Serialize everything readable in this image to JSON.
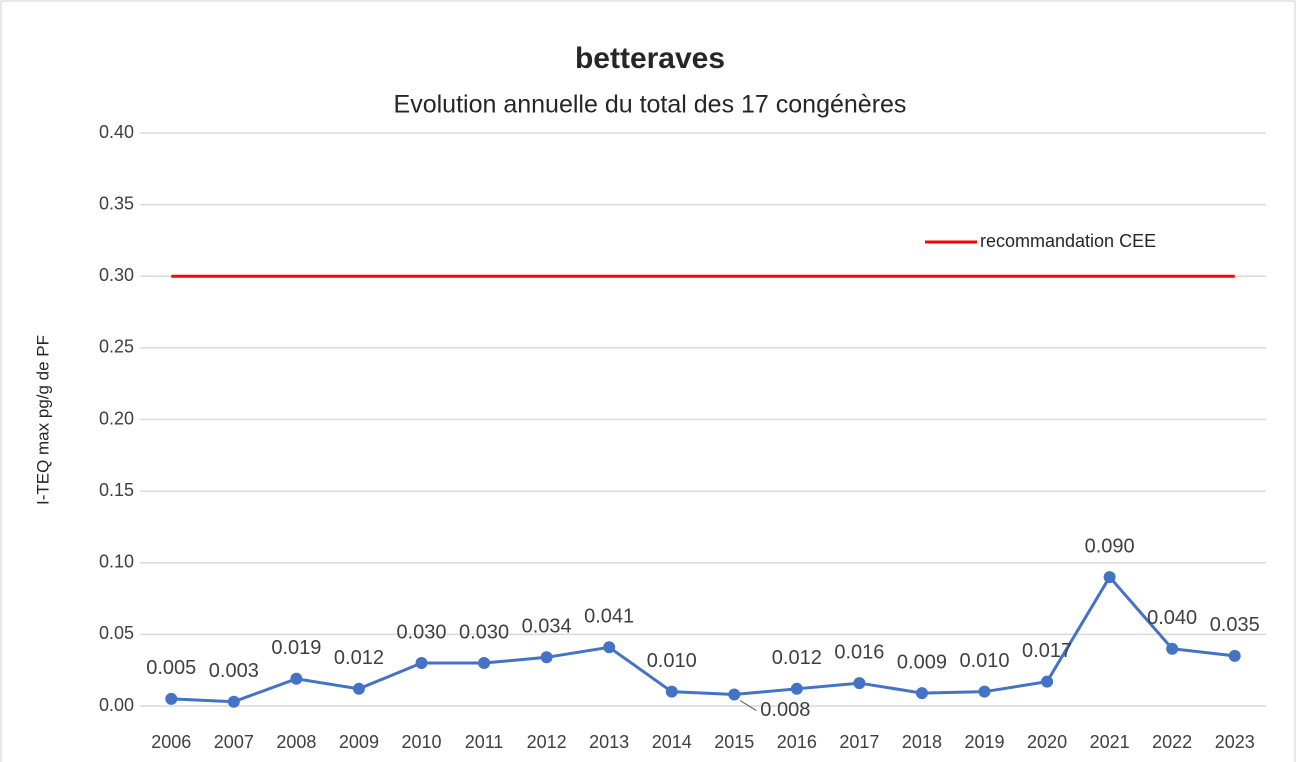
{
  "chart_data": {
    "type": "line",
    "title": "betteraves",
    "subtitle": "Evolution annuelle du total des 17 congénères",
    "y_label": "I-TEQ max pg/g de PF",
    "categories": [
      "2006",
      "2007",
      "2008",
      "2009",
      "2010",
      "2011",
      "2012",
      "2013",
      "2014",
      "2015",
      "2016",
      "2017",
      "2018",
      "2019",
      "2020",
      "2021",
      "2022",
      "2023"
    ],
    "series": [
      {
        "color": "#4472c4",
        "values": [
          0.005,
          0.003,
          0.019,
          0.012,
          0.03,
          0.03,
          0.034,
          0.041,
          0.01,
          0.008,
          0.012,
          0.016,
          0.009,
          0.01,
          0.017,
          0.09,
          0.04,
          0.035
        ],
        "value_labels": [
          "0.005",
          "0.003",
          "0.019",
          "0.012",
          "0.030",
          "0.030",
          "0.034",
          "0.041",
          "0.010",
          "0.008",
          "0.012",
          "0.016",
          "0.009",
          "0.010",
          "0.017",
          "0.090",
          "0.040",
          "0.035"
        ]
      },
      {
        "name": "recommandation CEE",
        "color": "#ff0000",
        "values": [
          0.3,
          0.3,
          0.3,
          0.3,
          0.3,
          0.3,
          0.3,
          0.3,
          0.3,
          0.3,
          0.3,
          0.3,
          0.3,
          0.3,
          0.3,
          0.3,
          0.3,
          0.3
        ]
      }
    ],
    "ylim": [
      0,
      0.4
    ],
    "yticks": [
      {
        "value": 0,
        "label": "0.00"
      },
      {
        "value": 0.05,
        "label": "0.05"
      },
      {
        "value": 0.1,
        "label": "0.10"
      },
      {
        "value": 0.15,
        "label": "0.15"
      },
      {
        "value": 0.2,
        "label": "0.20"
      },
      {
        "value": 0.25,
        "label": "0.25"
      },
      {
        "value": 0.3,
        "label": "0.30"
      },
      {
        "value": 0.35,
        "label": "0.35"
      },
      {
        "value": 0.4,
        "label": "0.40"
      }
    ],
    "grid": true,
    "legend": "top-right"
  }
}
